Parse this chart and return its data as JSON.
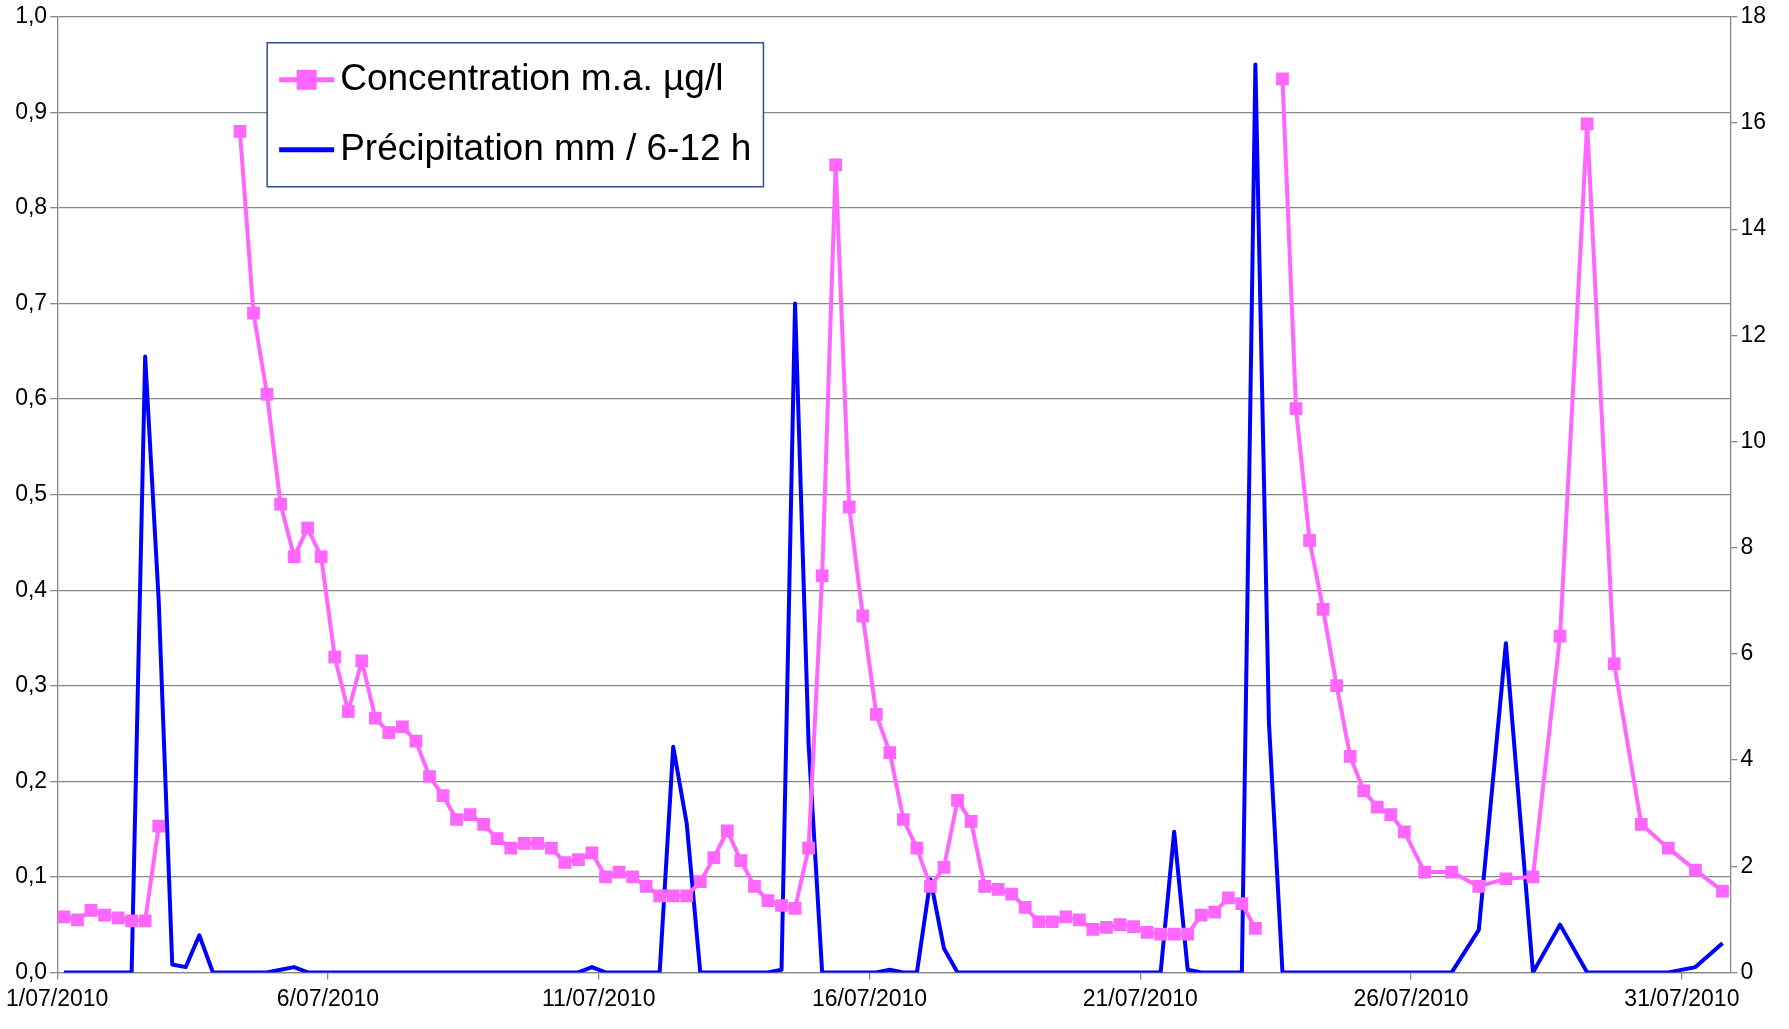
{
  "chart_data": {
    "type": "line",
    "x": [
      "2010-07-01T03:00",
      "2010-07-01T09:00",
      "2010-07-01T15:00",
      "2010-07-01T21:00",
      "2010-07-02T03:00",
      "2010-07-02T09:00",
      "2010-07-02T15:00",
      "2010-07-02T21:00",
      "2010-07-03T03:00",
      "2010-07-03T09:00",
      "2010-07-03T15:00",
      "2010-07-03T21:00",
      "2010-07-04T03:00",
      "2010-07-04T09:00",
      "2010-07-04T15:00",
      "2010-07-04T21:00",
      "2010-07-05T03:00",
      "2010-07-05T09:00",
      "2010-07-05T15:00",
      "2010-07-05T21:00",
      "2010-07-06T03:00",
      "2010-07-06T09:00",
      "2010-07-06T15:00",
      "2010-07-06T21:00",
      "2010-07-07T03:00",
      "2010-07-07T09:00",
      "2010-07-07T15:00",
      "2010-07-07T21:00",
      "2010-07-08T03:00",
      "2010-07-08T09:00",
      "2010-07-08T15:00",
      "2010-07-08T21:00",
      "2010-07-09T03:00",
      "2010-07-09T09:00",
      "2010-07-09T15:00",
      "2010-07-09T21:00",
      "2010-07-10T03:00",
      "2010-07-10T09:00",
      "2010-07-10T15:00",
      "2010-07-10T21:00",
      "2010-07-11T03:00",
      "2010-07-11T09:00",
      "2010-07-11T15:00",
      "2010-07-11T21:00",
      "2010-07-12T03:00",
      "2010-07-12T09:00",
      "2010-07-12T15:00",
      "2010-07-12T21:00",
      "2010-07-13T03:00",
      "2010-07-13T09:00",
      "2010-07-13T15:00",
      "2010-07-13T21:00",
      "2010-07-14T03:00",
      "2010-07-14T09:00",
      "2010-07-14T15:00",
      "2010-07-14T21:00",
      "2010-07-15T03:00",
      "2010-07-15T09:00",
      "2010-07-15T15:00",
      "2010-07-15T21:00",
      "2010-07-16T03:00",
      "2010-07-16T09:00",
      "2010-07-16T15:00",
      "2010-07-16T21:00",
      "2010-07-17T03:00",
      "2010-07-17T09:00",
      "2010-07-17T15:00",
      "2010-07-17T21:00",
      "2010-07-18T03:00",
      "2010-07-18T09:00",
      "2010-07-18T15:00",
      "2010-07-18T21:00",
      "2010-07-19T03:00",
      "2010-07-19T09:00",
      "2010-07-19T15:00",
      "2010-07-19T21:00",
      "2010-07-20T03:00",
      "2010-07-20T09:00",
      "2010-07-20T15:00",
      "2010-07-20T21:00",
      "2010-07-21T03:00",
      "2010-07-21T09:00",
      "2010-07-21T15:00",
      "2010-07-21T21:00",
      "2010-07-22T03:00",
      "2010-07-22T09:00",
      "2010-07-22T15:00",
      "2010-07-22T21:00",
      "2010-07-23T03:00",
      "2010-07-23T09:00",
      "2010-07-23T15:00",
      "2010-07-23T21:00",
      "2010-07-24T03:00",
      "2010-07-24T09:00",
      "2010-07-24T15:00",
      "2010-07-24T21:00",
      "2010-07-25T03:00",
      "2010-07-25T09:00",
      "2010-07-25T15:00",
      "2010-07-25T21:00",
      "2010-07-26T06:00",
      "2010-07-26T18:00",
      "2010-07-27T06:00",
      "2010-07-27T18:00",
      "2010-07-28T06:00",
      "2010-07-28T18:00",
      "2010-07-29T06:00",
      "2010-07-29T18:00",
      "2010-07-30T06:00",
      "2010-07-30T18:00",
      "2010-07-31T06:00",
      "2010-07-31T18:00"
    ],
    "series": [
      {
        "name": "Concentration m.a. µg/l",
        "color": "#ff66ff",
        "marker": "square",
        "values": [
          0.058,
          0.055,
          0.065,
          0.06,
          0.057,
          0.054,
          0.054,
          0.153,
          null,
          null,
          null,
          null,
          null,
          0.88,
          0.69,
          0.605,
          0.49,
          0.435,
          0.465,
          0.435,
          0.33,
          0.273,
          0.326,
          0.266,
          0.251,
          0.257,
          0.242,
          0.205,
          0.185,
          0.16,
          0.165,
          0.155,
          0.14,
          0.13,
          0.135,
          0.135,
          0.13,
          0.115,
          0.118,
          0.125,
          0.1,
          0.105,
          0.1,
          0.09,
          0.08,
          0.08,
          0.08,
          0.095,
          0.12,
          0.148,
          0.117,
          0.09,
          0.075,
          0.07,
          0.067,
          0.13,
          0.415,
          0.845,
          0.487,
          0.373,
          0.27,
          0.23,
          0.16,
          0.13,
          0.09,
          0.11,
          0.18,
          0.158,
          0.09,
          0.087,
          0.082,
          0.068,
          0.053,
          0.053,
          0.058,
          0.055,
          0.045,
          0.047,
          0.05,
          0.048,
          0.042,
          0.04,
          0.04,
          0.04,
          0.06,
          0.063,
          0.078,
          0.072,
          0.046,
          null,
          0.935,
          0.59,
          0.452,
          0.38,
          0.3,
          0.226,
          0.19,
          0.173,
          0.165,
          0.147,
          0.105,
          0.105,
          0.09,
          0.098,
          0.1,
          0.352,
          0.888,
          0.323,
          0.155,
          0.13,
          0.107,
          0.085
        ]
      },
      {
        "name": "Précipitation mm / 6-12 h",
        "color": "#0000ff",
        "marker": "none",
        "axis": "y2",
        "values": [
          0,
          0,
          0,
          0,
          0,
          0,
          11.6,
          7,
          0.15,
          0.1,
          0.7,
          0,
          0,
          0,
          0,
          0,
          0.05,
          0.1,
          0,
          0,
          0,
          0,
          0,
          0,
          0,
          0,
          0,
          0,
          0,
          0,
          0,
          0,
          0,
          0,
          0,
          0,
          0,
          0,
          0,
          0.1,
          0,
          0,
          0,
          0,
          0,
          4.25,
          2.8,
          0,
          0,
          0,
          0,
          0,
          0,
          0.05,
          12.6,
          4.3,
          0,
          0,
          0,
          0,
          0,
          0.05,
          0,
          0,
          1.75,
          0.45,
          0,
          0,
          0,
          0,
          0,
          0,
          0,
          0,
          0,
          0,
          0,
          0,
          0,
          0,
          0,
          0,
          2.65,
          0.05,
          0,
          0,
          0,
          0,
          17.1,
          4.7,
          0,
          0,
          0,
          0,
          0,
          0,
          0,
          0,
          0,
          0,
          0,
          0,
          0.8,
          6.2,
          0,
          0.9,
          0,
          0,
          0,
          0,
          0.1,
          0.55
        ]
      }
    ],
    "xlim": [
      "2010-07-01",
      "2010-07-31T21:30"
    ],
    "xticks": [
      {
        "value": "2010-07-01",
        "label": "1/07/2010"
      },
      {
        "value": "2010-07-06",
        "label": "6/07/2010"
      },
      {
        "value": "2010-07-11",
        "label": "11/07/2010"
      },
      {
        "value": "2010-07-16",
        "label": "16/07/2010"
      },
      {
        "value": "2010-07-21",
        "label": "21/07/2010"
      },
      {
        "value": "2010-07-26",
        "label": "26/07/2010"
      },
      {
        "value": "2010-07-31",
        "label": "31/07/2010"
      }
    ],
    "ylim": [
      0,
      1
    ],
    "yticks": [
      {
        "value": 0,
        "label": "0,0"
      },
      {
        "value": 0.1,
        "label": "0,1"
      },
      {
        "value": 0.2,
        "label": "0,2"
      },
      {
        "value": 0.3,
        "label": "0,3"
      },
      {
        "value": 0.4,
        "label": "0,4"
      },
      {
        "value": 0.5,
        "label": "0,5"
      },
      {
        "value": 0.6,
        "label": "0,6"
      },
      {
        "value": 0.7,
        "label": "0,7"
      },
      {
        "value": 0.8,
        "label": "0,8"
      },
      {
        "value": 0.9,
        "label": "0,9"
      },
      {
        "value": 1,
        "label": "1,0"
      }
    ],
    "y2lim": [
      0,
      18
    ],
    "y2ticks": [
      0,
      2,
      4,
      6,
      8,
      10,
      12,
      14,
      16,
      18
    ],
    "grid": "y",
    "legend": "top left"
  }
}
